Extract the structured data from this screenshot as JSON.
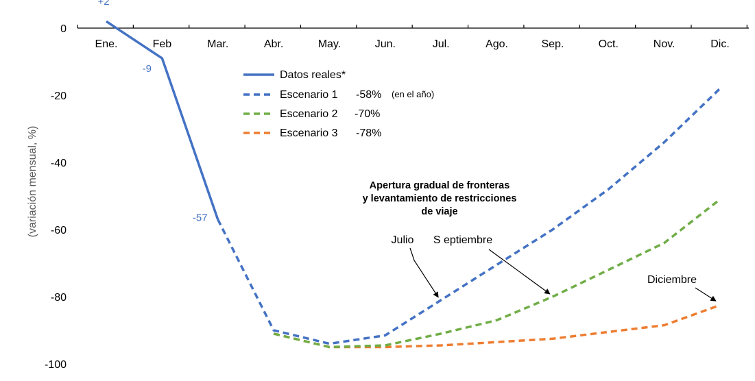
{
  "chart_data": {
    "type": "line",
    "title": "",
    "xlabel": "",
    "ylabel": "(variación mensual, %)",
    "ylim": [
      -100,
      0
    ],
    "yticks": [
      0,
      -20,
      -40,
      -60,
      -80,
      -100
    ],
    "grid": false,
    "categories": [
      "Ene.",
      "Feb",
      "Mar.",
      "Abr.",
      "May.",
      "Jun.",
      "Jul.",
      "Ago.",
      "Sep.",
      "Oct.",
      "Nov.",
      "Dic."
    ],
    "series": [
      {
        "name": "Datos reales*",
        "style": "solid",
        "color": "#4472C4",
        "values": [
          2,
          -9,
          -57,
          null,
          null,
          null,
          null,
          null,
          null,
          null,
          null,
          null
        ],
        "data_labels": [
          "+2",
          "-9",
          "-57"
        ]
      },
      {
        "name": "Escenario 1",
        "style": "dashed",
        "color": "#4472C4",
        "annual_change": "-58%",
        "annual_note": "(en el año)",
        "values": [
          null,
          null,
          -57,
          -90,
          -94,
          -91.5,
          -81,
          -70.5,
          -60,
          -48,
          -34,
          -18
        ]
      },
      {
        "name": "Escenario 2",
        "style": "dashed",
        "color": "#70AD47",
        "annual_change": "-70%",
        "values": [
          null,
          null,
          null,
          -91,
          -95,
          -94.5,
          -91,
          -87,
          -80,
          -72,
          -64,
          -51
        ]
      },
      {
        "name": "Escenario 3",
        "style": "dashed",
        "color": "#ED7D31",
        "annual_change": "-78%",
        "values": [
          null,
          null,
          null,
          -91,
          -95,
          -95,
          -94.5,
          -93.5,
          -92.5,
          -90.5,
          -88.5,
          -82.5
        ]
      }
    ],
    "legend_position": "top-center",
    "annotation_title": [
      "Apertura gradual de fronteras",
      "y levantamiento de restricciones",
      "de viaje"
    ],
    "arrows": [
      {
        "label": "Julio",
        "target_series": 1,
        "target_index": 6
      },
      {
        "label": "S eptiembre",
        "target_series": 2,
        "target_index": 8
      },
      {
        "label": "Diciembre",
        "target_series": 3,
        "target_index": 11
      }
    ]
  }
}
